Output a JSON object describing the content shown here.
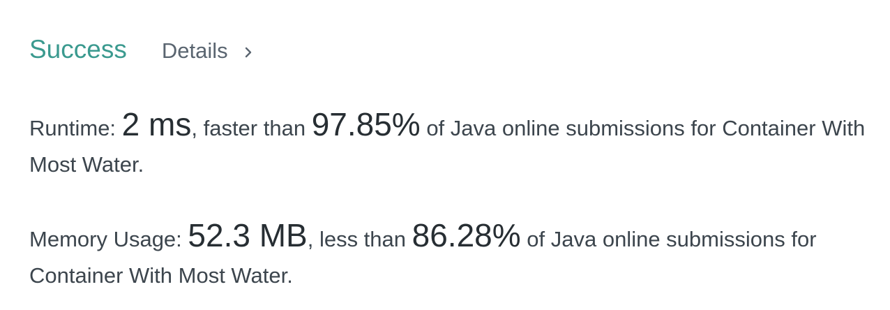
{
  "status": {
    "result": "Success",
    "details_label": "Details",
    "details_icon": "chevron-right-icon",
    "success_color": "#3b9a8f"
  },
  "runtime": {
    "label": "Runtime: ",
    "value": "2 ms",
    "comparison": ", faster than ",
    "percentile": "97.85%",
    "suffix": " of Java online submissions for Container With Most Water."
  },
  "memory": {
    "label": "Memory Usage: ",
    "value": "52.3 MB",
    "comparison": ", less than ",
    "percentile": "86.28%",
    "suffix": " of Java online submissions for Container With Most Water."
  }
}
